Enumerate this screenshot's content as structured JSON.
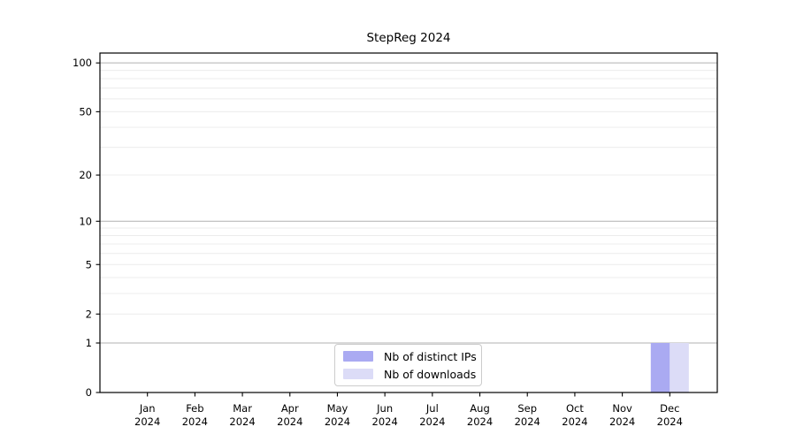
{
  "chart_data": {
    "type": "bar",
    "title": "StepReg 2024",
    "months": [
      "Jan",
      "Feb",
      "Mar",
      "Apr",
      "May",
      "Jun",
      "Jul",
      "Aug",
      "Sep",
      "Oct",
      "Nov",
      "Dec"
    ],
    "year": "2024",
    "series": [
      {
        "name": "Nb of distinct IPs",
        "color": "#aaaaf2",
        "values": [
          0,
          0,
          0,
          0,
          0,
          0,
          0,
          0,
          0,
          0,
          0,
          1
        ]
      },
      {
        "name": "Nb of downloads",
        "color": "#dcdcf7",
        "values": [
          0,
          0,
          0,
          0,
          0,
          0,
          0,
          0,
          0,
          0,
          0,
          1
        ]
      }
    ],
    "xlabel": "",
    "ylabel": "",
    "yscale": "log1p",
    "ylim": [
      0,
      115
    ],
    "yticks": [
      0,
      1,
      2,
      5,
      10,
      20,
      50,
      100
    ],
    "gridlines_major": [
      1,
      10,
      100
    ],
    "gridlines_minor": [
      2,
      3,
      4,
      5,
      6,
      7,
      8,
      9,
      20,
      30,
      40,
      50,
      60,
      70,
      80,
      90
    ],
    "grid": true,
    "legend_position": "bottom-center"
  },
  "colors": {
    "background": "#ffffff",
    "axis": "#000000",
    "text": "#000000",
    "grid_major": "#b0b0b0",
    "grid_minor": "#ececec",
    "legend_border": "#cccccc"
  }
}
